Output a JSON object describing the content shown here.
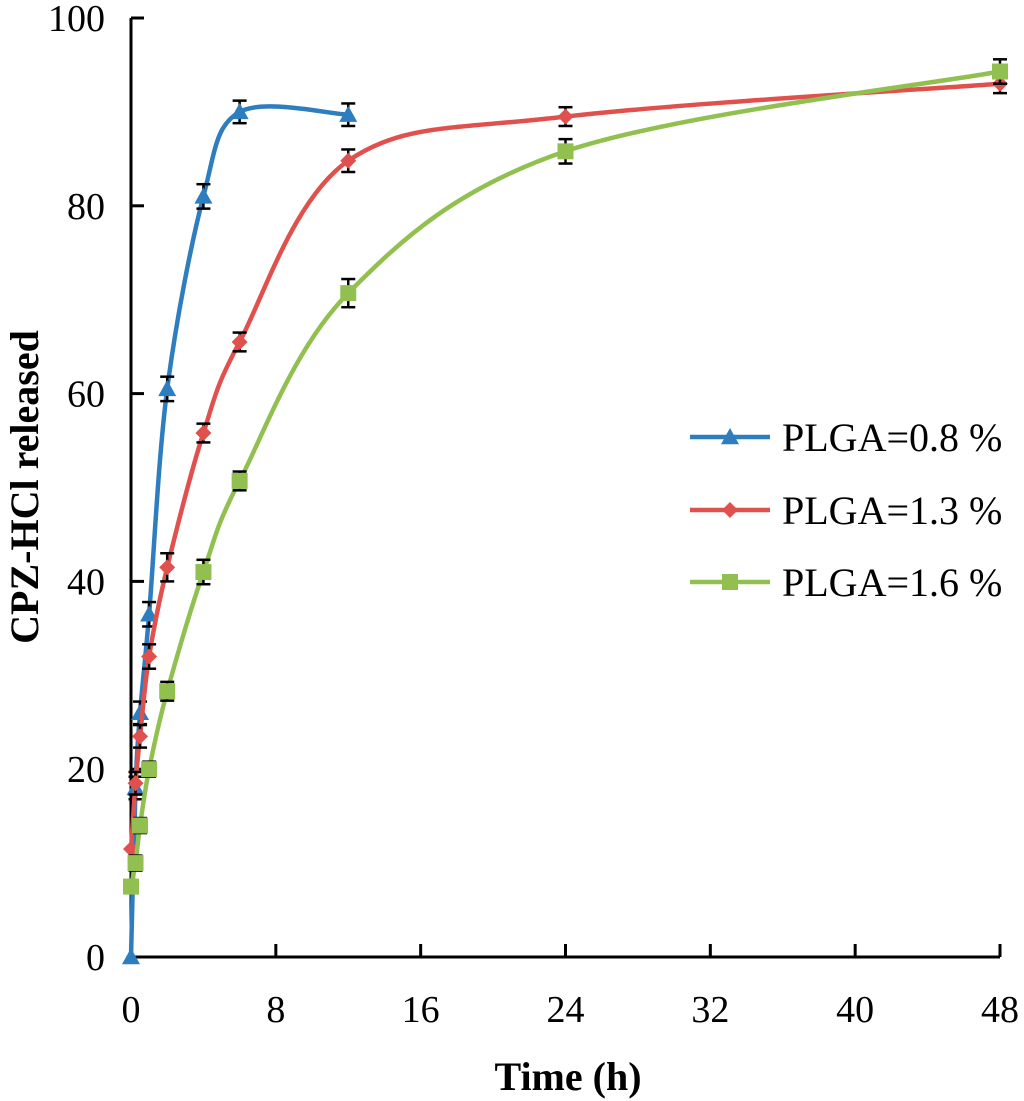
{
  "chart_data": {
    "type": "line",
    "title": "",
    "xlabel": "Time (h)",
    "ylabel": "CPZ-HCl  released",
    "xlim": [
      0,
      48
    ],
    "ylim": [
      0,
      100
    ],
    "xticks": [
      0,
      8,
      16,
      24,
      32,
      40,
      48
    ],
    "yticks": [
      0,
      20,
      40,
      60,
      80,
      100
    ],
    "legend_position": "right",
    "grid": false,
    "series": [
      {
        "name": "PLGA=0.8 %",
        "color": "#2E7EBF",
        "marker": "triangle",
        "x": [
          0,
          0.25,
          0.5,
          1,
          2,
          4,
          6,
          12
        ],
        "y": [
          0,
          18,
          26,
          36.5,
          60.5,
          81,
          90,
          89.7
        ],
        "err": [
          0,
          1.2,
          1.2,
          1.3,
          1.3,
          1.3,
          1.2,
          1.2
        ]
      },
      {
        "name": "PLGA=1.3 %",
        "color": "#E0514E",
        "marker": "diamond",
        "x": [
          0,
          0.25,
          0.5,
          1,
          2,
          4,
          6,
          12,
          24,
          48
        ],
        "y": [
          11.5,
          18.5,
          23.5,
          32,
          41.5,
          55.8,
          65.5,
          84.8,
          89.5,
          93
        ],
        "err": [
          0,
          1.2,
          1.2,
          1.3,
          1.5,
          1.0,
          1.0,
          1.2,
          1.0,
          1.0
        ]
      },
      {
        "name": "PLGA=1.6 %",
        "color": "#92C050",
        "marker": "square",
        "x": [
          0,
          0.25,
          0.5,
          1,
          2,
          4,
          6,
          12,
          24,
          48
        ],
        "y": [
          7.5,
          10,
          14,
          20,
          28.3,
          41,
          50.7,
          70.7,
          85.8,
          94.3
        ],
        "err": [
          0,
          0.8,
          0.8,
          0.8,
          1.0,
          1.3,
          1.0,
          1.5,
          1.3,
          1.3
        ]
      }
    ]
  }
}
